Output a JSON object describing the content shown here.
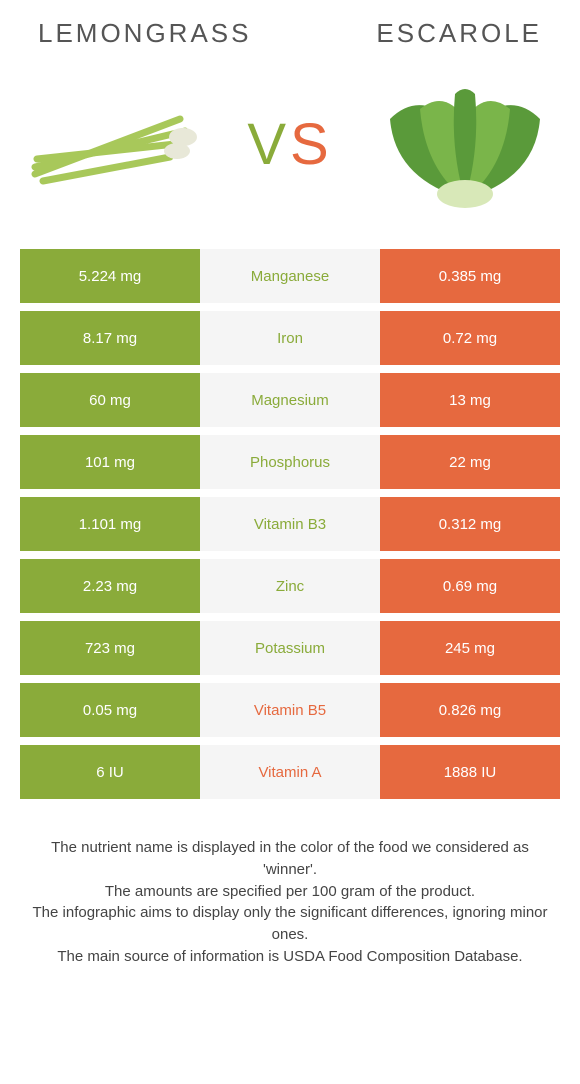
{
  "header": {
    "left_food": "Lemongrass",
    "right_food": "Escarole"
  },
  "vs": {
    "v": "V",
    "s": "S"
  },
  "colors": {
    "left": "#8aab3a",
    "right": "#e6693f",
    "mid_bg": "#f5f5f5",
    "text": "#555555"
  },
  "rows": [
    {
      "nutrient": "Manganese",
      "left": "5.224 mg",
      "right": "0.385 mg",
      "winner": "left"
    },
    {
      "nutrient": "Iron",
      "left": "8.17 mg",
      "right": "0.72 mg",
      "winner": "left"
    },
    {
      "nutrient": "Magnesium",
      "left": "60 mg",
      "right": "13 mg",
      "winner": "left"
    },
    {
      "nutrient": "Phosphorus",
      "left": "101 mg",
      "right": "22 mg",
      "winner": "left"
    },
    {
      "nutrient": "Vitamin B3",
      "left": "1.101 mg",
      "right": "0.312 mg",
      "winner": "left"
    },
    {
      "nutrient": "Zinc",
      "left": "2.23 mg",
      "right": "0.69 mg",
      "winner": "left"
    },
    {
      "nutrient": "Potassium",
      "left": "723 mg",
      "right": "245 mg",
      "winner": "left"
    },
    {
      "nutrient": "Vitamin B5",
      "left": "0.05 mg",
      "right": "0.826 mg",
      "winner": "right"
    },
    {
      "nutrient": "Vitamin A",
      "left": "6 IU",
      "right": "1888 IU",
      "winner": "right"
    }
  ],
  "footnotes": {
    "line1": "The nutrient name is displayed in the color of the food we considered as 'winner'.",
    "line2": "The amounts are specified per 100 gram of the product.",
    "line3": "The infographic aims to display only the significant differences, ignoring minor ones.",
    "line4": "The main source of information is USDA Food Composition Database."
  }
}
